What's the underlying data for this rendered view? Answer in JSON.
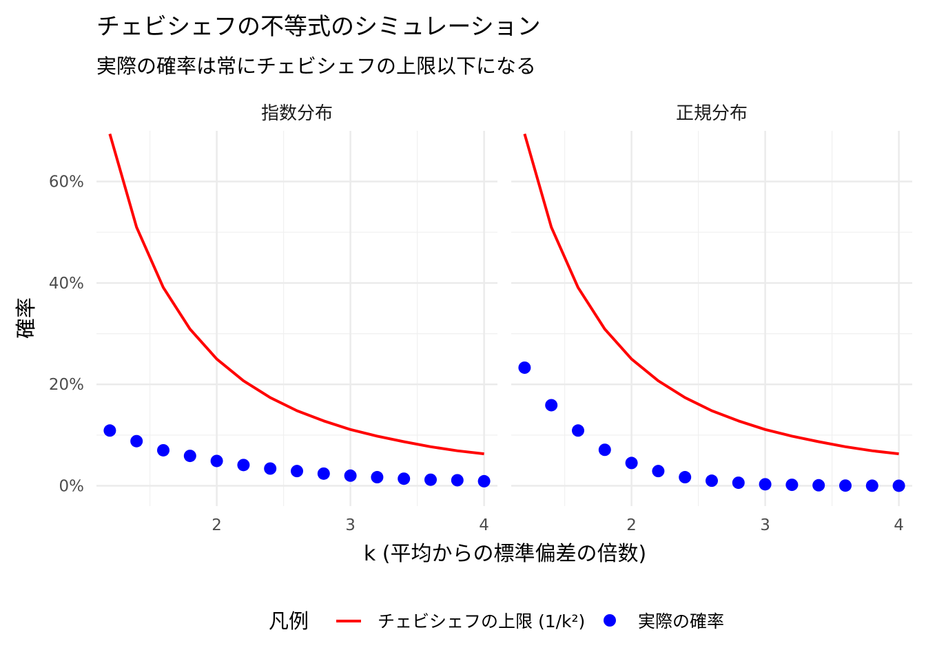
{
  "chart_data": {
    "type": "line",
    "title": "チェビシェフの不等式のシミュレーション",
    "subtitle": "実際の確率は常にチェビシェフの上限以下になる",
    "xlabel": "k (平均からの標準偏差の倍数)",
    "ylabel": "確率",
    "xlim": [
      1.1,
      4.1
    ],
    "ylim": [
      -0.04,
      0.7
    ],
    "x_ticks": [
      2,
      3,
      4
    ],
    "x_tick_labels": [
      "2",
      "3",
      "4"
    ],
    "y_ticks": [
      0,
      0.2,
      0.4,
      0.6
    ],
    "y_tick_labels": [
      "0%",
      "20%",
      "40%",
      "60%"
    ],
    "grid": true,
    "legend": {
      "position": "bottom",
      "title": "凡例",
      "items": [
        {
          "label": "チェビシェフの上限 (1/k²)",
          "color": "#ff0000",
          "shape": "line"
        },
        {
          "label": "実際の確率",
          "color": "#0000ff",
          "shape": "point"
        }
      ]
    },
    "k": [
      1.2,
      1.4,
      1.6,
      1.8,
      2.0,
      2.2,
      2.4,
      2.6,
      2.8,
      3.0,
      3.2,
      3.4,
      3.6,
      3.8,
      4.0
    ],
    "panels": [
      {
        "title": "指数分布",
        "series": [
          {
            "name": "チェビシェフの上限 (1/k²)",
            "type": "line",
            "color": "#ff0000",
            "values": [
              0.694,
              0.51,
              0.391,
              0.309,
              0.25,
              0.207,
              0.174,
              0.148,
              0.128,
              0.111,
              0.098,
              0.087,
              0.077,
              0.069,
              0.063
            ]
          },
          {
            "name": "実際の確率",
            "type": "scatter",
            "color": "#0000ff",
            "values": [
              0.109,
              0.088,
              0.07,
              0.059,
              0.049,
              0.041,
              0.034,
              0.029,
              0.024,
              0.02,
              0.017,
              0.014,
              0.012,
              0.011,
              0.009
            ]
          }
        ]
      },
      {
        "title": "正規分布",
        "series": [
          {
            "name": "チェビシェフの上限 (1/k²)",
            "type": "line",
            "color": "#ff0000",
            "values": [
              0.694,
              0.51,
              0.391,
              0.309,
              0.25,
              0.207,
              0.174,
              0.148,
              0.128,
              0.111,
              0.098,
              0.087,
              0.077,
              0.069,
              0.063
            ]
          },
          {
            "name": "実際の確率",
            "type": "scatter",
            "color": "#0000ff",
            "values": [
              0.233,
              0.159,
              0.109,
              0.071,
              0.045,
              0.029,
              0.017,
              0.01,
              0.006,
              0.003,
              0.002,
              0.001,
              0.0004,
              0.0002,
              0.0001
            ]
          }
        ]
      }
    ]
  }
}
